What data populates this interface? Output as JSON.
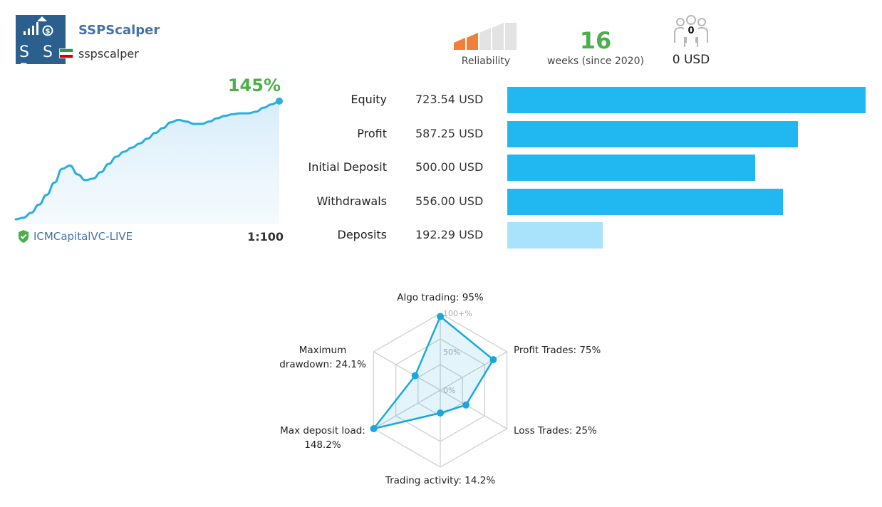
{
  "header": {
    "logo_text": "S S P",
    "signal_name": "SSPScalper",
    "author": "sspscalper",
    "reliability_label": "Reliability",
    "reliability_level": 2,
    "reliability_total": 5,
    "weeks_value": "16",
    "weeks_label": "weeks (since 2020)",
    "subscribers_count": "0",
    "subscription_price": "0 USD"
  },
  "growth": {
    "percent": "145%",
    "broker": "ICMCapitalVC-LIVE",
    "leverage": "1:100",
    "line_color": "#2aaee0",
    "curve": [
      0,
      2,
      8,
      18,
      30,
      45,
      62,
      66,
      55,
      48,
      50,
      58,
      68,
      77,
      83,
      88,
      93,
      99,
      106,
      112,
      119,
      122,
      120,
      117,
      117,
      120,
      124,
      127,
      129,
      130,
      130,
      132,
      137,
      141,
      145
    ]
  },
  "stats": {
    "max": 723.54,
    "rows": [
      {
        "label": "Equity",
        "value": "723.54 USD",
        "amount": 723.54,
        "color": "#21b8f2"
      },
      {
        "label": "Profit",
        "value": "587.25 USD",
        "amount": 587.25,
        "color": "#21b8f2"
      },
      {
        "label": "Initial Deposit",
        "value": "500.00 USD",
        "amount": 500.0,
        "color": "#21b8f2"
      },
      {
        "label": "Withdrawals",
        "value": "556.00 USD",
        "amount": 556.0,
        "color": "#21b8f2"
      },
      {
        "label": "Deposits",
        "value": "192.29 USD",
        "amount": 192.29,
        "color": "#a8e2fb"
      }
    ]
  },
  "radar": {
    "ticks": [
      "100+%",
      "50%",
      "0%"
    ],
    "color": "#1aa8dc",
    "axes": [
      {
        "label": "Algo trading: 95%",
        "value": 95
      },
      {
        "label": "Profit Trades: 75%",
        "value": 75
      },
      {
        "label": "Loss Trades: 25%",
        "value": 25
      },
      {
        "label": "Trading activity: 14.2%",
        "value": 14.2
      },
      {
        "label": "Max deposit load:",
        "label2": "148.2%",
        "value": 148.2
      },
      {
        "label": "Maximum",
        "label2": "drawdown: 24.1%",
        "value": 24.1
      }
    ]
  }
}
